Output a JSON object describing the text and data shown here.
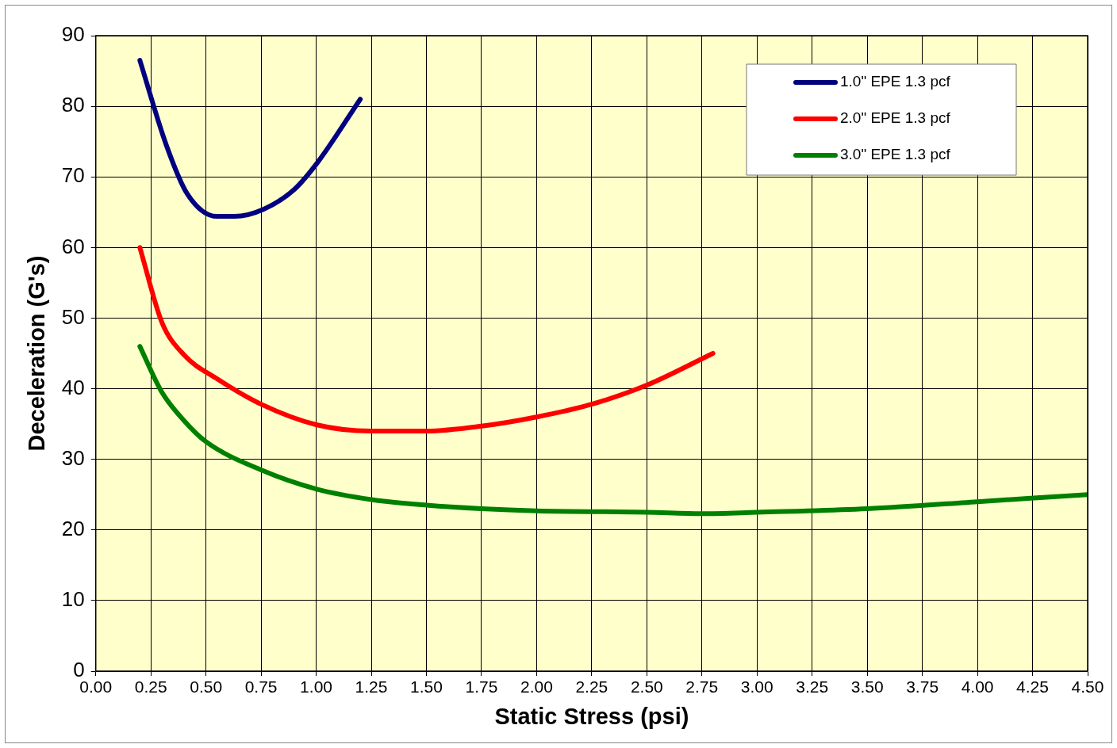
{
  "chart_data": {
    "type": "line",
    "xlabel": "Static Stress (psi)",
    "ylabel": "Deceleration (G's)",
    "xlim": [
      0,
      4.5
    ],
    "xticks": [
      {
        "value": 0,
        "label": "0.00"
      },
      {
        "value": 0.25,
        "label": "0.25"
      },
      {
        "value": 0.5,
        "label": "0.50"
      },
      {
        "value": 0.75,
        "label": "0.75"
      },
      {
        "value": 1,
        "label": "1.00"
      },
      {
        "value": 1.25,
        "label": "1.25"
      },
      {
        "value": 1.5,
        "label": "1.50"
      },
      {
        "value": 1.75,
        "label": "1.75"
      },
      {
        "value": 2,
        "label": "2.00"
      },
      {
        "value": 2.25,
        "label": "2.25"
      },
      {
        "value": 2.5,
        "label": "2.50"
      },
      {
        "value": 2.75,
        "label": "2.75"
      },
      {
        "value": 3,
        "label": "3.00"
      },
      {
        "value": 3.25,
        "label": "3.25"
      },
      {
        "value": 3.5,
        "label": "3.50"
      },
      {
        "value": 3.75,
        "label": "3.75"
      },
      {
        "value": 4,
        "label": "4.00"
      },
      {
        "value": 4.25,
        "label": "4.25"
      },
      {
        "value": 4.5,
        "label": "4.50"
      }
    ],
    "ylim": [
      0,
      90
    ],
    "yticks": [
      0,
      10,
      20,
      30,
      40,
      50,
      60,
      70,
      80,
      90
    ],
    "grid": true,
    "legend": "top right",
    "marker": "none",
    "line_style": "solid",
    "series": [
      {
        "name": "1.0\" EPE 1.3 pcf",
        "color": "#000080",
        "x": [
          0.2,
          0.32,
          0.415,
          0.55,
          0.63,
          0.76,
          0.9,
          1.01,
          1.2
        ],
        "values": [
          86.5,
          74.5,
          67.6,
          64.4,
          64.4,
          65.4,
          68.2,
          72.2,
          81
        ]
      },
      {
        "name": "2.0\" EPE 1.3 pcf",
        "color": "#ff0000",
        "x": [
          0.2,
          0.3,
          0.4,
          0.55,
          0.75,
          1.0,
          1.25,
          1.5,
          1.75,
          2.0,
          2.25,
          2.5,
          2.8
        ],
        "values": [
          60,
          49.4,
          44.8,
          41.4,
          37.8,
          34.9,
          34,
          34,
          34.7,
          36,
          37.8,
          40.5,
          45
        ]
      },
      {
        "name": "3.0\" EPE 1.3 pcf",
        "color": "#008000",
        "x": [
          0.2,
          0.3,
          0.4,
          0.5,
          0.75,
          1.0,
          1.25,
          1.5,
          1.75,
          2.0,
          2.5,
          2.75,
          3.0,
          3.5,
          4.0,
          4.5
        ],
        "values": [
          46,
          39.5,
          35.5,
          32.5,
          28.5,
          25.8,
          24.3,
          23.5,
          23,
          22.7,
          22.5,
          22.3,
          22.5,
          23,
          24,
          25
        ]
      }
    ]
  }
}
